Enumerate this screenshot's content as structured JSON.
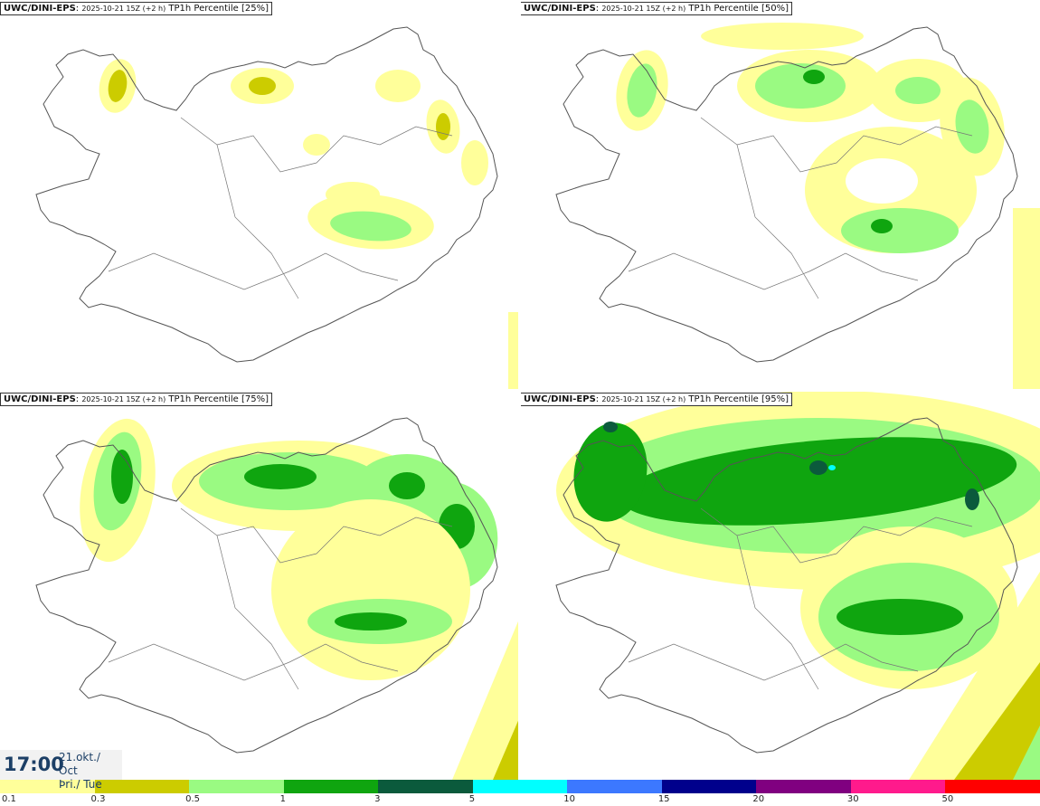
{
  "panels": [
    {
      "source": "UWC/DINI-EPS",
      "run": "2025-10-21 15Z (+2 h)",
      "product": "TP1h Percentile [25%]",
      "percentile": 25
    },
    {
      "source": "UWC/DINI-EPS",
      "run": "2025-10-21 15Z (+2 h)",
      "product": "TP1h Percentile [50%]",
      "percentile": 50
    },
    {
      "source": "UWC/DINI-EPS",
      "run": "2025-10-21 15Z (+2 h)",
      "product": "TP1h Percentile [75%]",
      "percentile": 75
    },
    {
      "source": "UWC/DINI-EPS",
      "run": "2025-10-21 15Z (+2 h)",
      "product": "TP1h Percentile [95%]",
      "percentile": 95
    }
  ],
  "valid_time": {
    "time": "17:00",
    "date": "21.okt./ Oct",
    "weekday": "Þri./ Tue"
  },
  "legend": {
    "labels": [
      "0.1",
      "0.3",
      "0.5",
      "1",
      "3",
      "5",
      "10",
      "15",
      "20",
      "30",
      "50"
    ],
    "colors": [
      "#ffff9a",
      "#cccc00",
      "#9afa82",
      "#0fa50f",
      "#0b5a3c",
      "#00ffff",
      "#3c78ff",
      "#00008c",
      "#800080",
      "#ff1a8c",
      "#ff0000"
    ]
  },
  "map_colors": {
    "land_line": "#555555",
    "level1": "#ffff9a",
    "level2": "#cccc00",
    "level3": "#9afa82",
    "level4": "#0fa50f",
    "level5": "#0b5a3c",
    "level6": "#00ffff"
  }
}
